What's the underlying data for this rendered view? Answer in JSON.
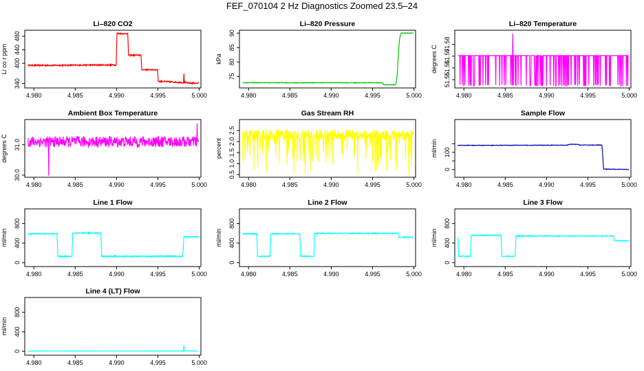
{
  "figure_title": "FEF_070104  2 Hz Diagnostics Zoomed 23.5–24",
  "chart_data": [
    {
      "type": "line",
      "title": "Li–820 CO2",
      "ylabel": "Li co r ppm",
      "color": "#ff0000",
      "xlim": [
        4.9789,
        5.0002
      ],
      "ylim": [
        327,
        498
      ],
      "xticks": [
        4.98,
        4.985,
        4.99,
        4.995,
        5.0
      ],
      "xtick_labels": [
        "4.980",
        "4.985",
        "4.990",
        "4.995",
        "5.000"
      ],
      "yticks": [
        340,
        400,
        440,
        480
      ],
      "ytick_labels": [
        "340",
        "400",
        "440",
        "480"
      ],
      "series": [
        {
          "name": "co2",
          "x": [
            4.9793,
            4.983,
            4.987,
            4.98995,
            4.99005,
            4.99135,
            4.99145,
            4.99295,
            4.99305,
            4.99495,
            4.99505,
            4.9981,
            4.99815,
            4.9982,
            4.9983,
            4.9989,
            4.9999
          ],
          "y": [
            394,
            394,
            395,
            395,
            488,
            488,
            424,
            424,
            381,
            381,
            347,
            343,
            370,
            343,
            343,
            341,
            341
          ],
          "noise": 2
        }
      ]
    },
    {
      "type": "line",
      "title": "Li–820 Pressure",
      "ylabel": "kPa",
      "color": "#00c000",
      "xlim": [
        4.9789,
        5.0002
      ],
      "ylim": [
        71,
        91
      ],
      "xticks": [
        4.98,
        4.985,
        4.99,
        4.995,
        5.0
      ],
      "xtick_labels": [
        "4.980",
        "4.985",
        "4.990",
        "4.995",
        "5.000"
      ],
      "yticks": [
        75,
        80,
        85,
        90
      ],
      "ytick_labels": [
        "75",
        "80",
        "85",
        "90"
      ],
      "series": [
        {
          "name": "pressure",
          "x": [
            4.9793,
            4.9962,
            4.9963,
            4.9978,
            4.998,
            4.9981,
            4.9982,
            4.9983,
            4.99845,
            4.9999
          ],
          "y": [
            72.8,
            72.8,
            72.1,
            72.1,
            76,
            82,
            86,
            88.5,
            90,
            90
          ],
          "noise": 0.1
        }
      ]
    },
    {
      "type": "line",
      "title": "Li–820 Temperature",
      "ylabel": "degrees C",
      "color": "#ff00ff",
      "xlim": [
        4.9789,
        5.0002
      ],
      "ylim": [
        51.543,
        51.592
      ],
      "xticks": [
        4.98,
        4.985,
        4.99,
        4.995,
        5.0
      ],
      "xtick_labels": [
        "4.980",
        "4.985",
        "4.990",
        "4.995",
        "5.000"
      ],
      "yticks": [
        51.55,
        51.56,
        51.57,
        51.58
      ],
      "ytick_labels": [
        "51.55",
        "51.56",
        "51.57",
        "51.58"
      ],
      "series": [
        {
          "name": "temperature",
          "x": [
            4.9793,
            4.9858,
            4.9859,
            4.98595,
            4.9999
          ],
          "y": [
            51.5705,
            51.5705,
            51.5892,
            51.5705,
            51.5705
          ],
          "noise": 0,
          "dips_to": 51.5445
        }
      ]
    },
    {
      "type": "line",
      "title": "Ambient Box Temperature",
      "ylabel": "degrees C",
      "color": "#ff00ff",
      "xlim": [
        4.9789,
        5.0002
      ],
      "ylim": [
        29.93,
        31.83
      ],
      "xticks": [
        4.98,
        4.985,
        4.99,
        4.995,
        5.0
      ],
      "xtick_labels": [
        "4.980",
        "4.985",
        "4.990",
        "4.995",
        "5.000"
      ],
      "yticks": [
        30.0,
        31.0
      ],
      "ytick_labels": [
        "30.0",
        "31.0"
      ],
      "series": [
        {
          "name": "box_temp",
          "x": [
            4.9793,
            4.9999
          ],
          "y": [
            31.1,
            31.1
          ],
          "noise": 0.18,
          "min_spike": [
            4.9818,
            29.98
          ],
          "max_spike": [
            4.99975,
            31.7
          ]
        }
      ]
    },
    {
      "type": "line",
      "title": "Gas Stream RH",
      "ylabel": "percent",
      "color": "#ffff00",
      "xlim": [
        4.9789,
        5.0002
      ],
      "ylim": [
        0.38,
        3.0
      ],
      "xticks": [
        4.98,
        4.985,
        4.99,
        4.995,
        5.0
      ],
      "xtick_labels": [
        "4.980",
        "4.985",
        "4.990",
        "4.995",
        "5.000"
      ],
      "yticks": [
        0.5,
        1.0,
        1.5,
        2.0,
        2.5
      ],
      "ytick_labels": [
        "0.5",
        "1.0",
        "1.5",
        "2.0",
        "2.5"
      ],
      "series": [
        {
          "name": "rh",
          "x": [
            4.9793,
            4.9999
          ],
          "y": [
            2.3,
            2.3
          ],
          "noise": 0.25,
          "dips_to": 0.5
        }
      ]
    },
    {
      "type": "line",
      "title": "Sample Flow",
      "ylabel": "ml/min",
      "color": "#0000c0",
      "xlim": [
        4.9789,
        5.0002
      ],
      "ylim": [
        -45,
        290
      ],
      "xticks": [
        4.98,
        4.985,
        4.99,
        4.995,
        5.0
      ],
      "xtick_labels": [
        "4.980",
        "4.985",
        "4.990",
        "4.995",
        "5.000"
      ],
      "yticks": [
        0,
        50,
        100,
        150
      ],
      "ytick_labels": [
        "0",
        "",
        "100",
        ""
      ],
      "series": [
        {
          "name": "sample_flow",
          "x": [
            4.9793,
            4.99,
            4.9925,
            4.9928,
            4.9937,
            4.994,
            4.9966,
            4.9967,
            4.9969,
            4.9999
          ],
          "y": [
            140,
            141,
            141,
            146,
            146,
            142,
            142,
            141,
            2,
            1
          ],
          "noise": 1.5
        }
      ]
    },
    {
      "type": "line",
      "title": "Line 1 Flow",
      "ylabel": "ml/min",
      "color": "#00ffff",
      "xlim": [
        4.9789,
        5.0002
      ],
      "ylim": [
        -80,
        1100
      ],
      "xticks": [
        4.98,
        4.985,
        4.99,
        4.995,
        5.0
      ],
      "xtick_labels": [
        "4.980",
        "4.985",
        "4.990",
        "4.995",
        "5.000"
      ],
      "yticks": [
        0,
        400,
        800
      ],
      "ytick_labels": [
        "0",
        "400",
        "800"
      ],
      "series": [
        {
          "name": "line1_flow",
          "x": [
            4.9793,
            4.9828,
            4.9829,
            4.9846,
            4.9847,
            4.9881,
            4.9882,
            4.998,
            4.9981,
            4.99815,
            4.9999
          ],
          "y": [
            590,
            590,
            130,
            130,
            605,
            605,
            130,
            130,
            400,
            530,
            530
          ],
          "noise": 12
        }
      ]
    },
    {
      "type": "line",
      "title": "Line 2 Flow",
      "ylabel": "ml/min",
      "color": "#00ffff",
      "xlim": [
        4.9789,
        5.0002
      ],
      "ylim": [
        -80,
        1100
      ],
      "xticks": [
        4.98,
        4.985,
        4.99,
        4.995,
        5.0
      ],
      "xtick_labels": [
        "4.980",
        "4.985",
        "4.990",
        "4.995",
        "5.000"
      ],
      "yticks": [
        0,
        400,
        800
      ],
      "ytick_labels": [
        "0",
        "400",
        "800"
      ],
      "series": [
        {
          "name": "line2_flow",
          "x": [
            4.9793,
            4.981,
            4.9811,
            4.9826,
            4.9827,
            4.9862,
            4.9863,
            4.9879,
            4.988,
            4.9981,
            4.9982,
            4.9999
          ],
          "y": [
            590,
            590,
            130,
            130,
            590,
            590,
            130,
            130,
            600,
            600,
            520,
            520
          ],
          "noise": 10
        }
      ]
    },
    {
      "type": "line",
      "title": "Line 3 Flow",
      "ylabel": "ml/min",
      "color": "#00ffff",
      "xlim": [
        4.9789,
        5.0002
      ],
      "ylim": [
        -80,
        1100
      ],
      "xticks": [
        4.98,
        4.985,
        4.99,
        4.995,
        5.0
      ],
      "xtick_labels": [
        "4.980",
        "4.985",
        "4.990",
        "4.995",
        "5.000"
      ],
      "yticks": [
        0,
        400,
        800
      ],
      "ytick_labels": [
        "0",
        "400",
        "800"
      ],
      "series": [
        {
          "name": "line3_flow",
          "x": [
            4.9793,
            4.97935,
            4.9808,
            4.9809,
            4.9845,
            4.9846,
            4.9862,
            4.9863,
            4.9981,
            4.9982,
            4.9999
          ],
          "y": [
            520,
            130,
            130,
            560,
            560,
            130,
            130,
            545,
            545,
            450,
            450
          ],
          "noise": 10
        }
      ]
    },
    {
      "type": "line",
      "title": "Line 4 (LT) Flow",
      "ylabel": "ml/min",
      "color": "#00ffff",
      "xlim": [
        4.9789,
        5.0002
      ],
      "ylim": [
        -80,
        1100
      ],
      "xticks": [
        4.98,
        4.985,
        4.99,
        4.995,
        5.0
      ],
      "xtick_labels": [
        "4.980",
        "4.985",
        "4.990",
        "4.995",
        "5.000"
      ],
      "yticks": [
        0,
        400,
        800
      ],
      "ytick_labels": [
        "0",
        "400",
        "800"
      ],
      "series": [
        {
          "name": "line4_flow",
          "x": [
            4.9793,
            4.9981,
            4.99815,
            4.9982,
            4.9999
          ],
          "y": [
            5,
            5,
            120,
            8,
            5
          ],
          "noise": 2
        }
      ]
    }
  ]
}
